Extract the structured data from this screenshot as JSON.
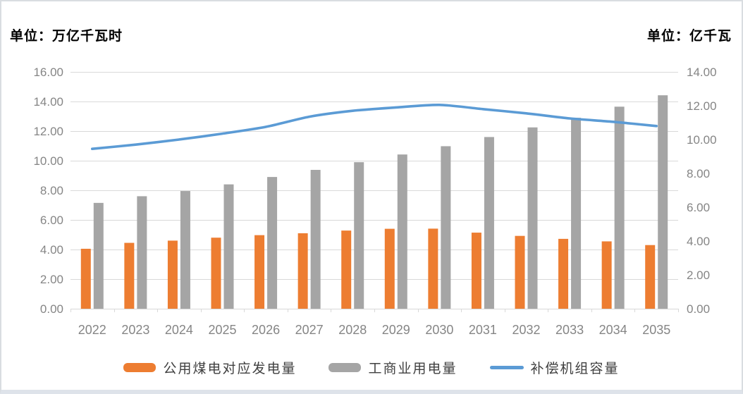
{
  "chart_data": {
    "type": "combo",
    "categories": [
      "2022",
      "2023",
      "2024",
      "2025",
      "2026",
      "2027",
      "2028",
      "2029",
      "2030",
      "2031",
      "2032",
      "2033",
      "2034",
      "2035"
    ],
    "left_axis": {
      "unit_title": "单位：万亿千瓦时",
      "min": 0,
      "max": 16,
      "step": 2,
      "ticks": [
        "0.00",
        "2.00",
        "4.00",
        "6.00",
        "8.00",
        "10.00",
        "12.00",
        "14.00",
        "16.00"
      ]
    },
    "right_axis": {
      "unit_title": "单位：亿千瓦",
      "min": 0,
      "max": 14,
      "step": 2,
      "ticks": [
        "0.00",
        "2.00",
        "4.00",
        "6.00",
        "8.00",
        "10.00",
        "12.00",
        "14.00"
      ]
    },
    "series": [
      {
        "name": "公用煤电对应发电量",
        "type": "bar",
        "axis": "left",
        "color": "#ED7D31",
        "values": [
          4.05,
          4.45,
          4.6,
          4.8,
          4.97,
          5.1,
          5.28,
          5.4,
          5.41,
          5.14,
          4.92,
          4.72,
          4.55,
          4.3
        ]
      },
      {
        "name": "工商业用电量",
        "type": "bar",
        "axis": "left",
        "color": "#A5A5A5",
        "values": [
          7.15,
          7.6,
          7.95,
          8.4,
          8.9,
          9.38,
          9.9,
          10.42,
          10.98,
          11.6,
          12.25,
          12.9,
          13.65,
          14.42
        ]
      },
      {
        "name": "补偿机组容量",
        "type": "line",
        "axis": "right",
        "color": "#5B9BD5",
        "values": [
          9.45,
          9.7,
          10.0,
          10.35,
          10.75,
          11.35,
          11.7,
          11.9,
          12.05,
          11.8,
          11.55,
          11.25,
          11.05,
          10.8
        ]
      }
    ],
    "legend_position": "bottom",
    "grid": true,
    "colors": {
      "gridline": "#D9D9D9",
      "axis_label": "#858585",
      "unit_title": "#000000",
      "legend_label": "#404040",
      "panel_border": "#D9DDE1",
      "panel_bottom_border": "#DEE3EA",
      "background": "#FFFFFF"
    }
  }
}
